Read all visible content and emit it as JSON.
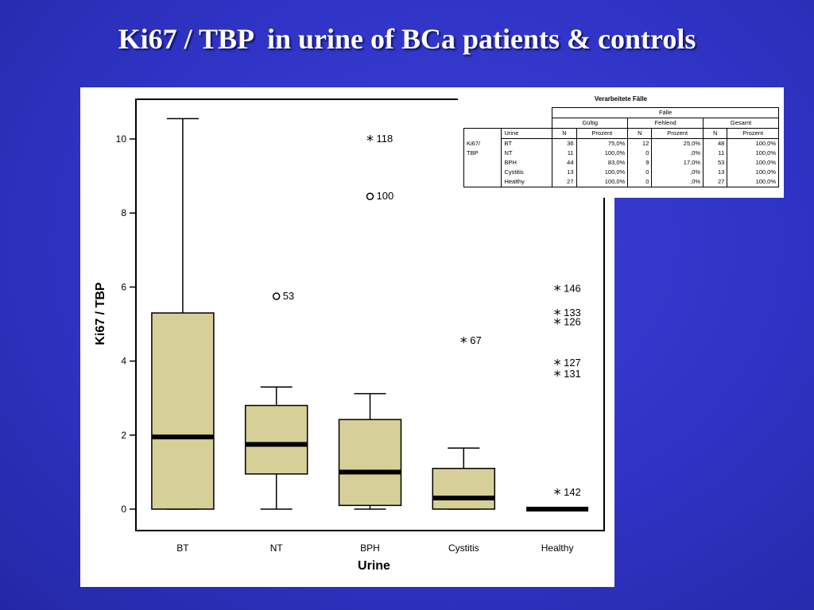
{
  "slide": {
    "title": "Ki67 / TBP  in urine of BCa patients & controls"
  },
  "chart_data": {
    "type": "box",
    "title": "",
    "xlabel": "Urine",
    "ylabel": "Ki67 / TBP",
    "ylim": [
      -0.6,
      11.1
    ],
    "yticks": [
      0,
      2,
      4,
      6,
      8,
      10
    ],
    "grid": false,
    "categories": [
      "BT",
      "NT",
      "BPH",
      "Cystitis",
      "Healthy"
    ],
    "boxes": [
      {
        "category": "BT",
        "whisker_low": 0,
        "q1": 0,
        "median": 1.95,
        "q3": 5.3,
        "whisker_high": 10.55
      },
      {
        "category": "NT",
        "whisker_low": 0,
        "q1": 0.95,
        "median": 1.75,
        "q3": 2.8,
        "whisker_high": 3.3
      },
      {
        "category": "BPH",
        "whisker_low": 0,
        "q1": 0.1,
        "median": 1.0,
        "q3": 2.42,
        "whisker_high": 3.12
      },
      {
        "category": "Cystitis",
        "whisker_low": 0,
        "q1": 0,
        "median": 0.3,
        "q3": 1.1,
        "whisker_high": 1.65
      },
      {
        "category": "Healthy",
        "whisker_low": 0,
        "q1": 0,
        "median": 0,
        "q3": 0,
        "whisker_high": 0
      }
    ],
    "outliers": [
      {
        "category": "BPH",
        "value": 10.0,
        "label": "118",
        "marker": "extreme"
      },
      {
        "category": "BPH",
        "value": 8.45,
        "label": "100",
        "marker": "outlier"
      },
      {
        "category": "NT",
        "value": 5.75,
        "label": "53",
        "marker": "outlier"
      },
      {
        "category": "Cystitis",
        "value": 4.55,
        "label": "67",
        "marker": "extreme"
      },
      {
        "category": "Healthy",
        "value": 5.95,
        "label": "146",
        "marker": "extreme"
      },
      {
        "category": "Healthy",
        "value": 5.3,
        "label": "133",
        "marker": "extreme"
      },
      {
        "category": "Healthy",
        "value": 5.05,
        "label": "126",
        "marker": "extreme"
      },
      {
        "category": "Healthy",
        "value": 3.95,
        "label": "127",
        "marker": "extreme"
      },
      {
        "category": "Healthy",
        "value": 3.65,
        "label": "131",
        "marker": "extreme"
      },
      {
        "category": "Healthy",
        "value": 0.45,
        "label": "142",
        "marker": "extreme"
      }
    ],
    "colors": {
      "box_fill": "#d6cf98",
      "stroke": "#000000"
    }
  },
  "case_table": {
    "title": "Verarbeitete Fälle",
    "group_header": "Fälle",
    "subheaders": [
      "Gültig",
      "Fehlend",
      "Gesamt"
    ],
    "var_header": "Urine",
    "col_headers": [
      "N",
      "Prozent",
      "N",
      "Prozent",
      "N",
      "Prozent"
    ],
    "row_label_1": "Ki67/",
    "row_label_2": "TBP",
    "rows": [
      {
        "label": "BT",
        "values": [
          "36",
          "75,0%",
          "12",
          "25,0%",
          "48",
          "100,0%"
        ]
      },
      {
        "label": "NT",
        "values": [
          "11",
          "100,0%",
          "0",
          ",0%",
          "11",
          "100,0%"
        ]
      },
      {
        "label": "BPH",
        "values": [
          "44",
          "83,0%",
          "9",
          "17,0%",
          "53",
          "100,0%"
        ]
      },
      {
        "label": "Cystitis",
        "values": [
          "13",
          "100,0%",
          "0",
          ",0%",
          "13",
          "100,0%"
        ]
      },
      {
        "label": "Healthy",
        "values": [
          "27",
          "100,0%",
          "0",
          ",0%",
          "27",
          "100,0%"
        ]
      }
    ]
  }
}
